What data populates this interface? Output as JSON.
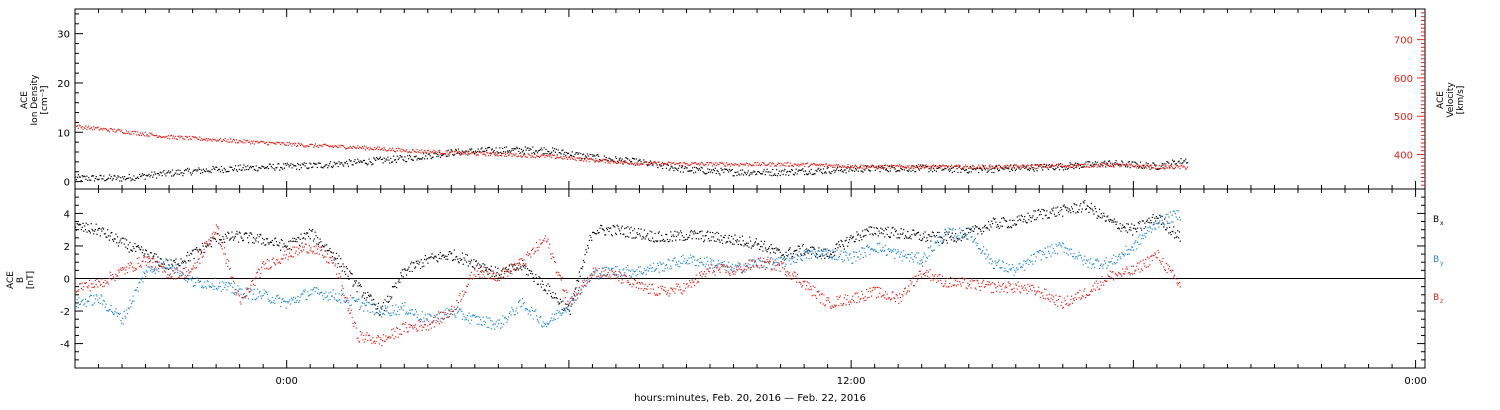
{
  "chart_data": [
    {
      "type": "scatter",
      "panel": "top",
      "ylabel": [
        "ACE",
        "Ion Density",
        "[cm⁻³]"
      ],
      "y2label": [
        "ACE",
        "Velocity",
        "[km/s]"
      ],
      "ylim": [
        -1.5,
        35
      ],
      "y2lim": [
        310,
        780
      ],
      "yticks": [
        "0",
        "10",
        "20",
        "30"
      ],
      "y2ticks": [
        "400",
        "500",
        "600",
        "700"
      ],
      "colors": {
        "density": "#000000",
        "velocity": "#e8221b"
      },
      "series": [
        {
          "axis": "left",
          "color": "#000000",
          "x": [
            -9,
            -7,
            -5,
            -3,
            -1,
            1,
            3,
            5,
            7,
            9,
            11,
            13,
            15,
            17,
            19,
            21,
            23,
            25,
            27,
            29,
            31,
            33,
            35,
            37,
            38.3
          ],
          "y": [
            0.8,
            0.8,
            1.8,
            2.6,
            3.0,
            3.3,
            4.0,
            4.8,
            6.0,
            6.5,
            6.5,
            5.0,
            4.0,
            2.5,
            2.0,
            2.0,
            2.4,
            2.8,
            2.8,
            2.5,
            2.8,
            3.2,
            3.8,
            3.2,
            4.5
          ]
        },
        {
          "axis": "right",
          "color": "#e8221b",
          "x": [
            -9,
            -7,
            -5,
            -3,
            -1,
            1,
            3,
            5,
            7,
            9,
            11,
            13,
            15,
            17,
            19,
            21,
            23,
            25,
            27,
            29,
            31,
            33,
            35,
            37,
            38.3
          ],
          "y": [
            475,
            462,
            447,
            440,
            432,
            425,
            420,
            412,
            406,
            402,
            397,
            387,
            378,
            377,
            376,
            376,
            373,
            369,
            370,
            369,
            370,
            372,
            374,
            369,
            368
          ]
        }
      ]
    },
    {
      "type": "scatter",
      "panel": "bottom",
      "ylabel": [
        "ACE",
        "B",
        "[nT]"
      ],
      "ylim": [
        -5.5,
        5.5
      ],
      "yticks": [
        "-4",
        "-2",
        "0",
        "2",
        "4"
      ],
      "colors": {
        "Bx": "#000000",
        "By": "#1f8ad8",
        "Bz": "#e8221b"
      },
      "series": [
        {
          "name": "Bx",
          "color": "#000000",
          "x": [
            -9,
            -8,
            -7,
            -6,
            -5,
            -4,
            -3,
            -2,
            -1,
            0,
            1,
            2,
            3,
            4,
            5,
            6,
            7,
            8,
            9,
            10,
            11,
            12,
            13,
            14,
            15,
            16,
            17,
            18,
            19,
            20,
            21,
            22,
            23,
            24,
            25,
            26,
            27,
            28,
            29,
            30,
            31,
            32,
            33,
            34,
            35,
            36,
            37,
            38
          ],
          "y": [
            3.2,
            3.0,
            2.2,
            1.5,
            0.8,
            1.5,
            2.5,
            2.6,
            2.4,
            2.0,
            2.8,
            1.5,
            -0.5,
            -2.0,
            0.5,
            1.2,
            1.5,
            1.0,
            0.3,
            0.8,
            -0.5,
            -2.0,
            3.0,
            3.0,
            2.8,
            2.5,
            2.7,
            2.6,
            2.4,
            2.2,
            1.5,
            1.8,
            1.5,
            2.5,
            3.0,
            2.8,
            2.6,
            2.5,
            2.8,
            3.4,
            3.5,
            4.0,
            4.2,
            4.5,
            3.5,
            3.0,
            3.8,
            2.5
          ]
        },
        {
          "name": "By",
          "color": "#1f8ad8",
          "x": [
            -9,
            -8,
            -7,
            -6,
            -5,
            -4,
            -3,
            -2,
            -1,
            0,
            1,
            2,
            3,
            4,
            5,
            6,
            7,
            8,
            9,
            10,
            11,
            12,
            13,
            14,
            15,
            16,
            17,
            18,
            19,
            20,
            21,
            22,
            23,
            24,
            25,
            26,
            27,
            28,
            29,
            30,
            31,
            32,
            33,
            34,
            35,
            36,
            37,
            38
          ],
          "y": [
            -1.5,
            -1.2,
            -2.5,
            0.5,
            1.0,
            -0.2,
            -0.3,
            -0.8,
            -1.0,
            -1.5,
            -0.8,
            -1.0,
            -1.5,
            -2.0,
            -1.8,
            -2.5,
            -2.0,
            -2.5,
            -2.8,
            -1.5,
            -2.8,
            -1.5,
            0.3,
            0.5,
            0.5,
            0.8,
            1.2,
            1.0,
            0.6,
            1.0,
            1.0,
            1.5,
            1.6,
            1.3,
            2.0,
            1.5,
            1.2,
            2.8,
            2.8,
            1.0,
            0.5,
            1.5,
            2.0,
            1.0,
            1.0,
            2.0,
            3.5,
            4.0
          ]
        },
        {
          "name": "Bz",
          "color": "#e8221b",
          "x": [
            -9,
            -8,
            -7,
            -6,
            -5,
            -4,
            -3,
            -2,
            -1,
            0,
            1,
            2,
            3,
            4,
            5,
            6,
            7,
            8,
            9,
            10,
            11,
            12,
            13,
            14,
            15,
            16,
            17,
            18,
            19,
            20,
            21,
            22,
            23,
            24,
            25,
            26,
            27,
            28,
            29,
            30,
            31,
            32,
            33,
            34,
            35,
            36,
            37,
            38
          ],
          "y": [
            -0.5,
            -0.3,
            0.5,
            1.2,
            0.3,
            0.5,
            3.2,
            -1.5,
            0.8,
            1.5,
            2.0,
            1.0,
            -3.5,
            -3.8,
            -3.0,
            -2.8,
            -2.0,
            0.5,
            0.2,
            1.0,
            2.5,
            -1.5,
            0.5,
            0.2,
            -0.5,
            -0.8,
            -0.5,
            0.6,
            0.5,
            1.0,
            0.8,
            -0.3,
            -1.5,
            -1.2,
            -0.8,
            -1.2,
            0.5,
            -0.2,
            -0.3,
            -0.5,
            -0.5,
            -0.8,
            -1.5,
            -0.8,
            0.2,
            0.5,
            1.5,
            -0.5
          ]
        }
      ]
    }
  ],
  "x_axis": {
    "label": "hours:minutes, Feb. 20, 2016 — Feb. 22, 2016",
    "major_ticks": [
      {
        "label": "0:00",
        "t": 0
      },
      {
        "label": "12:00",
        "t": 24
      },
      {
        "label": "0:00",
        "t": 48
      }
    ],
    "range_hours": [
      -9,
      48.4
    ]
  },
  "legend": {
    "Bx": "B",
    "Bx_sub": "x",
    "By": "B",
    "By_sub": "y",
    "Bz": "B",
    "Bz_sub": "z"
  }
}
